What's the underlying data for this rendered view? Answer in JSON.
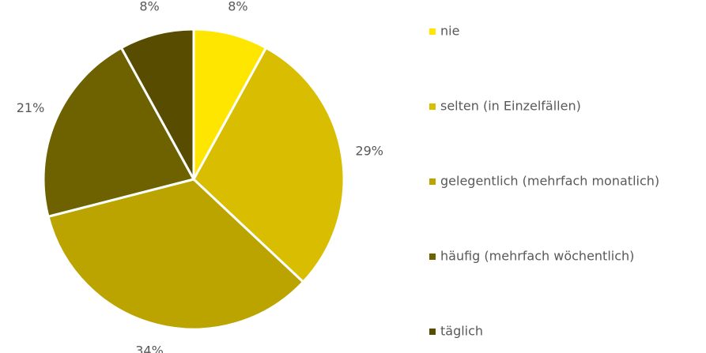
{
  "chart_data": {
    "type": "pie",
    "categories": [
      "nie",
      "selten (in Einzelfällen)",
      "gelegentlich (mehrfach monatlich)",
      "häufig (mehrfach wöchentlich)",
      "täglich"
    ],
    "values": [
      8,
      29,
      34,
      21,
      8
    ],
    "value_labels": [
      "8%",
      "29%",
      "34%",
      "21%",
      "8%"
    ],
    "colors": [
      "#ffe600",
      "#d9bd00",
      "#bca400",
      "#6e6200",
      "#584c00"
    ],
    "legend": "right"
  }
}
